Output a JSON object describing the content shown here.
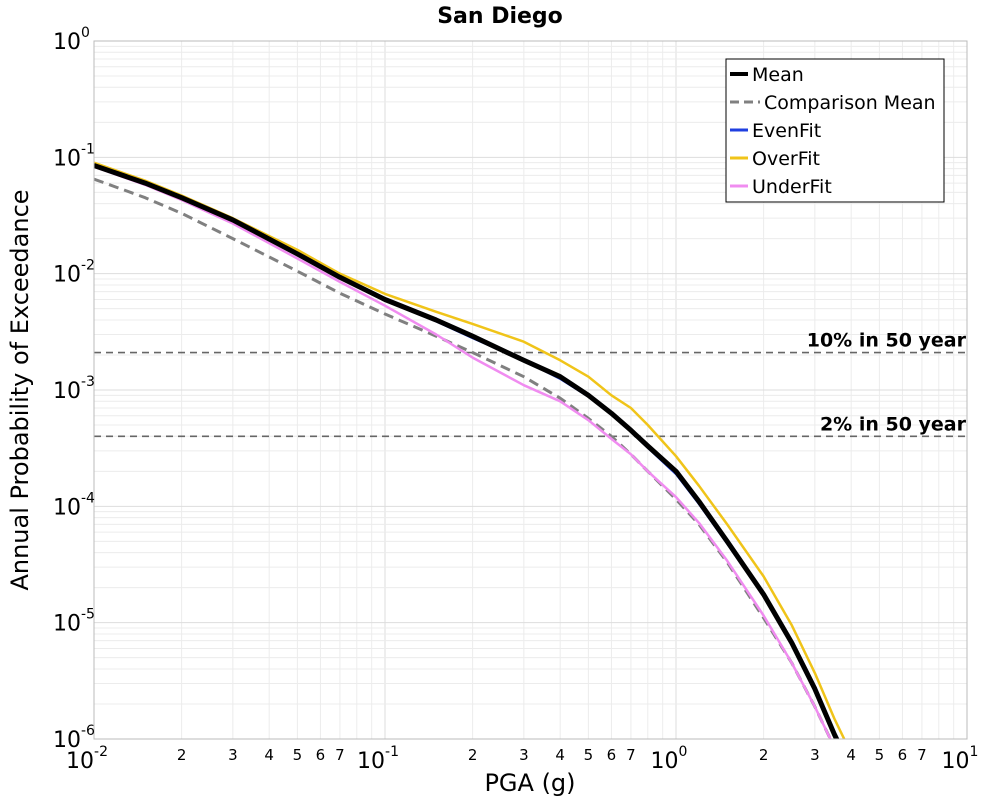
{
  "chart_data": {
    "type": "line",
    "title": "San Diego",
    "xlabel": "PGA (g)",
    "ylabel": "Annual Probability of Exceedance",
    "xscale": "log",
    "yscale": "log",
    "xlim": [
      0.01,
      10
    ],
    "ylim": [
      1e-06,
      1
    ],
    "grid": true,
    "legend_position": "top-right",
    "x_major_ticks": [
      {
        "base": "10",
        "exp": "-2"
      },
      {
        "base": "10",
        "exp": "-1"
      },
      {
        "base": "10",
        "exp": "0"
      },
      {
        "base": "10",
        "exp": "1"
      }
    ],
    "y_major_ticks": [
      {
        "base": "10",
        "exp": "-6"
      },
      {
        "base": "10",
        "exp": "-5"
      },
      {
        "base": "10",
        "exp": "-4"
      },
      {
        "base": "10",
        "exp": "-3"
      },
      {
        "base": "10",
        "exp": "-2"
      },
      {
        "base": "10",
        "exp": "-1"
      },
      {
        "base": "10",
        "exp": "0"
      }
    ],
    "x_minor_tick_labels": [
      "2",
      "3",
      "4",
      "5",
      "6",
      "7"
    ],
    "series": [
      {
        "name": "Comparison Mean",
        "color": "#808080",
        "dash": true,
        "x": [
          0.01,
          0.015,
          0.02,
          0.03,
          0.05,
          0.07,
          0.1,
          0.15,
          0.2,
          0.3,
          0.4,
          0.5,
          0.6,
          0.7,
          0.8,
          1.0,
          1.2,
          1.5,
          2.0,
          2.5,
          3.0,
          3.5,
          4.0
        ],
        "y": [
          0.065,
          0.045,
          0.033,
          0.02,
          0.0105,
          0.0068,
          0.0045,
          0.0029,
          0.0021,
          0.0013,
          0.00085,
          0.00057,
          0.0004,
          0.00028,
          0.0002,
          0.000115,
          7e-05,
          3.3e-05,
          1.1e-05,
          4.5e-06,
          1.9e-06,
          8.5e-07,
          4.5e-07
        ]
      },
      {
        "name": "OverFit",
        "color": "#f0c419",
        "dash": false,
        "x": [
          0.01,
          0.015,
          0.02,
          0.03,
          0.05,
          0.07,
          0.1,
          0.15,
          0.2,
          0.3,
          0.4,
          0.5,
          0.6,
          0.7,
          0.8,
          1.0,
          1.2,
          1.5,
          2.0,
          2.5,
          3.0,
          3.5,
          4.0
        ],
        "y": [
          0.09,
          0.063,
          0.047,
          0.03,
          0.016,
          0.01,
          0.0067,
          0.0047,
          0.0037,
          0.0026,
          0.0018,
          0.0013,
          0.0009,
          0.0007,
          0.0005,
          0.00027,
          0.00015,
          7e-05,
          2.5e-05,
          9.5e-06,
          3.7e-06,
          1.5e-06,
          7.5e-07
        ]
      },
      {
        "name": "UnderFit",
        "color": "#f08cf0",
        "dash": false,
        "x": [
          0.01,
          0.015,
          0.02,
          0.03,
          0.05,
          0.07,
          0.1,
          0.15,
          0.2,
          0.3,
          0.4,
          0.5,
          0.6,
          0.7,
          0.8,
          1.0,
          1.2,
          1.5,
          2.0,
          2.5,
          3.0,
          3.5,
          4.0
        ],
        "y": [
          0.083,
          0.058,
          0.043,
          0.027,
          0.0135,
          0.0085,
          0.0053,
          0.003,
          0.0019,
          0.0011,
          0.0008,
          0.00055,
          0.00038,
          0.00028,
          0.0002,
          0.00012,
          7.2e-05,
          3.4e-05,
          1.15e-05,
          4.5e-06,
          1.9e-06,
          8.5e-07,
          4.5e-07
        ]
      },
      {
        "name": "EvenFit",
        "color": "#1f3fe0",
        "dash": false,
        "x": [
          0.01,
          0.015,
          0.02,
          0.03,
          0.05,
          0.07,
          0.1,
          0.15,
          0.2,
          0.3,
          0.4,
          0.5,
          0.6,
          0.7,
          0.8,
          1.0,
          1.2,
          1.5,
          2.0,
          2.5,
          3.0,
          3.5,
          4.0
        ],
        "y": [
          0.086,
          0.06,
          0.045,
          0.029,
          0.0148,
          0.0093,
          0.006,
          0.0039,
          0.0028,
          0.0018,
          0.00125,
          0.00088,
          0.00062,
          0.00044,
          0.00032,
          0.00019,
          0.000105,
          4.8e-05,
          1.7e-05,
          6.5e-06,
          2.6e-06,
          1.1e-06,
          5.5e-07
        ]
      },
      {
        "name": "Mean",
        "color": "#000000",
        "dash": false,
        "x": [
          0.01,
          0.015,
          0.02,
          0.03,
          0.05,
          0.07,
          0.1,
          0.15,
          0.2,
          0.3,
          0.4,
          0.5,
          0.6,
          0.7,
          0.8,
          1.0,
          1.2,
          1.5,
          2.0,
          2.5,
          3.0,
          3.5,
          4.0
        ],
        "y": [
          0.085,
          0.06,
          0.045,
          0.029,
          0.0148,
          0.0093,
          0.006,
          0.004,
          0.0029,
          0.0018,
          0.0013,
          0.0009,
          0.00063,
          0.00045,
          0.00033,
          0.0002,
          0.00011,
          5e-05,
          1.75e-05,
          6.7e-06,
          2.7e-06,
          1.1e-06,
          5.5e-07
        ]
      }
    ],
    "legend_order": [
      "Mean",
      "Comparison Mean",
      "EvenFit",
      "OverFit",
      "UnderFit"
    ],
    "reference_lines": [
      {
        "label": "10% in 50 year",
        "y": 0.0021,
        "color": "#666666"
      },
      {
        "label": "2% in 50 year",
        "y": 0.0004,
        "color": "#666666"
      }
    ]
  }
}
